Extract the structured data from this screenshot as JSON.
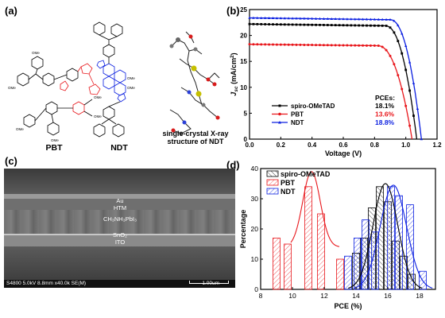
{
  "panels": {
    "a": "(a)",
    "b": "(b)",
    "c": "(c)",
    "d": "(d)"
  },
  "molecules": {
    "pbt": "PBT",
    "ndt": "NDT",
    "xray_line1": "single-crystal X-ray",
    "xray_line2": "structure of NDT",
    "ome": "OMe"
  },
  "sem": {
    "au": "Au",
    "htm": "HTM",
    "perovskite": "CH₃NH₃PbI₃",
    "sno2": "SnO₂",
    "ito": "ITO",
    "info": "S4800 5.0kV 8.8mm x40.0k SE(M)",
    "scale": "1.00um"
  },
  "colors": {
    "spiro": "#000000",
    "pbt": "#e8161b",
    "ndt": "#0a1ee0"
  },
  "chart_data": [
    {
      "type": "line",
      "xlabel": "Voltage (V)",
      "ylabel": "J_sc (mA/cm²)",
      "xlim": [
        0.0,
        1.2
      ],
      "ylim": [
        0,
        25
      ],
      "xticks": [
        "0.0",
        "0.2",
        "0.4",
        "0.6",
        "0.8",
        "1.0",
        "1.2"
      ],
      "yticks": [
        "0",
        "5",
        "10",
        "15",
        "20",
        "25"
      ],
      "legend_title": "PCEs:",
      "legend_placement": "bottom-right",
      "series": [
        {
          "name": "spiro-OMeTAD",
          "pce": "18.1%",
          "color": "#000000",
          "marker": "square",
          "jsc": 22.2,
          "voc": 1.07,
          "vk": 0.87,
          "n": 0.06
        },
        {
          "name": "PBT",
          "pce": "13.6%",
          "color": "#e8161b",
          "marker": "circle",
          "jsc": 18.3,
          "voc": 1.04,
          "vk": 0.82,
          "n": 0.07
        },
        {
          "name": "NDT",
          "pce": "18.8%",
          "color": "#0a1ee0",
          "marker": "triangle",
          "jsc": 23.4,
          "voc": 1.1,
          "vk": 0.9,
          "n": 0.06
        }
      ]
    },
    {
      "type": "bar",
      "xlabel": "PCE (%)",
      "ylabel": "Percentage",
      "xlim": [
        8,
        19
      ],
      "ylim": [
        0,
        40
      ],
      "xticks": [
        "8",
        "10",
        "12",
        "14",
        "16",
        "18"
      ],
      "yticks": [
        "0",
        "10",
        "20",
        "30",
        "40"
      ],
      "legend_placement": "top-left",
      "series": [
        {
          "name": "spiro-OMeTAD",
          "color": "#000000",
          "hatch": "back",
          "bins": [
            [
              14,
              12
            ],
            [
              14.5,
              17
            ],
            [
              15,
              27
            ],
            [
              15.5,
              34
            ],
            [
              16,
              29
            ],
            [
              16.5,
              16
            ],
            [
              17,
              11
            ],
            [
              17.5,
              5
            ]
          ],
          "fit": {
            "mu": 15.85,
            "sigma": 0.78,
            "amp": 35
          }
        },
        {
          "name": "PBT",
          "color": "#e8161b",
          "hatch": "fwd",
          "bins": [
            [
              9,
              17
            ],
            [
              9.7,
              15
            ],
            [
              11,
              34
            ],
            [
              11.8,
              25
            ],
            [
              13,
              10
            ]
          ],
          "fit": {
            "mu": 11.2,
            "sigma": 0.55,
            "amp": 39,
            "base": 14,
            "from": 9.9,
            "to": 13.0
          }
        },
        {
          "name": "NDT",
          "color": "#0a1ee0",
          "hatch": "fwd",
          "bins": [
            [
              13.5,
              11
            ],
            [
              14.1,
              17
            ],
            [
              14.6,
              23
            ],
            [
              15.2,
              19
            ],
            [
              16.2,
              34
            ],
            [
              16.7,
              31
            ],
            [
              17.4,
              28
            ],
            [
              18.2,
              6
            ]
          ],
          "fit": {
            "mu": 16.35,
            "sigma": 0.83,
            "amp": 34.5
          }
        }
      ],
      "bin_width": 0.45
    }
  ]
}
